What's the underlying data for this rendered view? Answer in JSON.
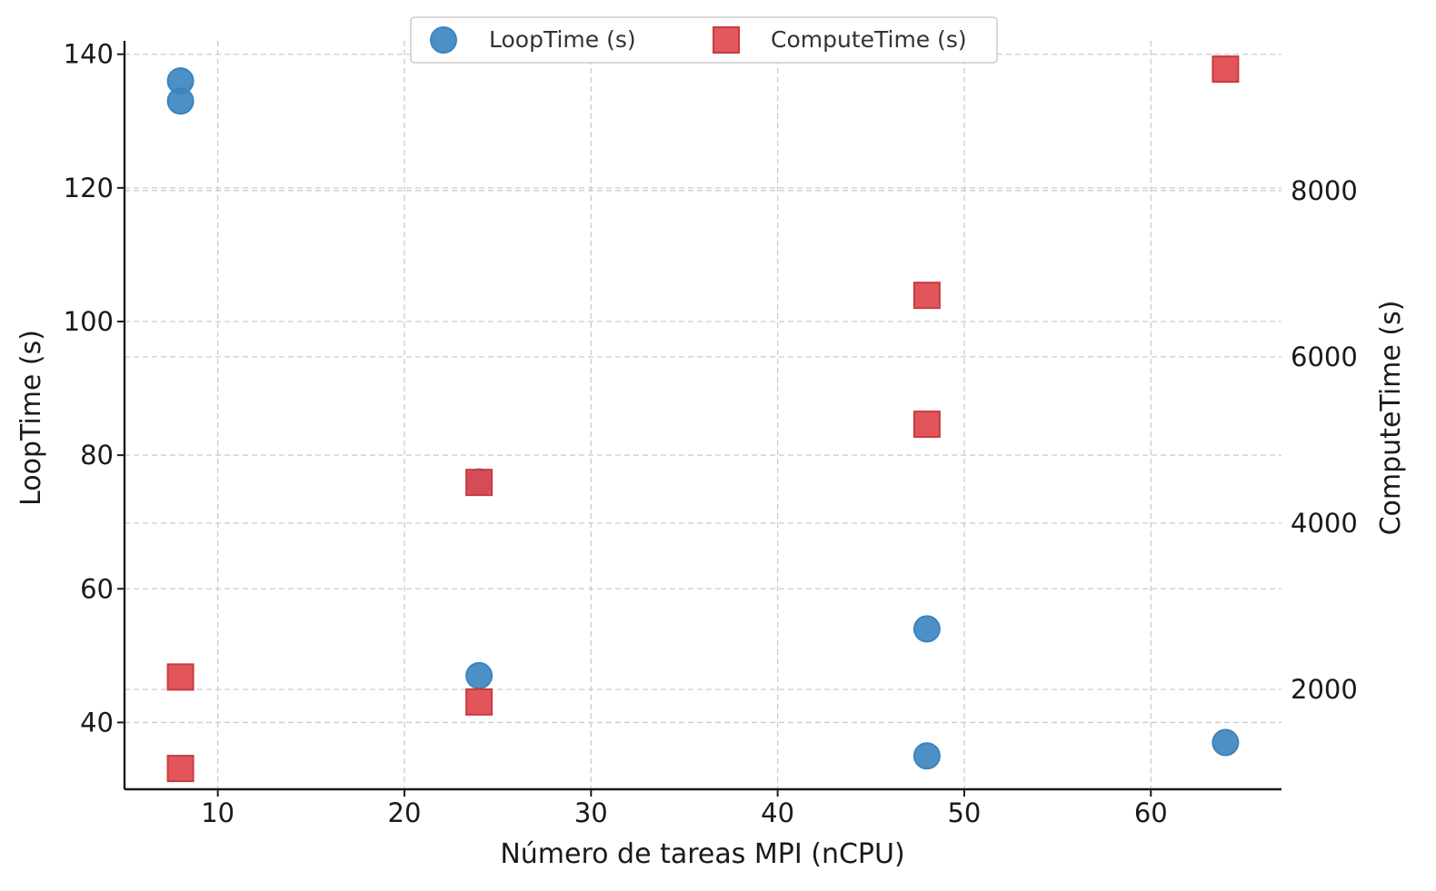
{
  "chart_data": {
    "type": "scatter",
    "xlabel": "Número de tareas MPI (nCPU)",
    "ylabel": "LoopTime (s)",
    "y2label": "ComputeTime (s)",
    "xlim": [
      5,
      67
    ],
    "ylim": [
      30,
      142
    ],
    "y2lim": [
      800,
      9800
    ],
    "x_ticks": [
      10,
      20,
      30,
      40,
      50,
      60
    ],
    "y_ticks": [
      40,
      60,
      80,
      100,
      120,
      140
    ],
    "y2_ticks": [
      2000,
      4000,
      6000,
      8000
    ],
    "grid": true,
    "legend_position": "top-center",
    "series": [
      {
        "name": "LoopTime (s)",
        "axis": "left",
        "marker": "circle",
        "color": "#3a84c0",
        "points": [
          {
            "x": 8,
            "y": 136
          },
          {
            "x": 8,
            "y": 133
          },
          {
            "x": 24,
            "y": 76
          },
          {
            "x": 24,
            "y": 47
          },
          {
            "x": 48,
            "y": 54
          },
          {
            "x": 48,
            "y": 35
          },
          {
            "x": 64,
            "y": 37
          }
        ]
      },
      {
        "name": "ComputeTime (s)",
        "axis": "right",
        "marker": "square",
        "color": "#e0474c",
        "points": [
          {
            "x": 8,
            "y": 2150
          },
          {
            "x": 8,
            "y": 1050
          },
          {
            "x": 24,
            "y": 4490
          },
          {
            "x": 24,
            "y": 1850
          },
          {
            "x": 48,
            "y": 6740
          },
          {
            "x": 48,
            "y": 5190
          },
          {
            "x": 64,
            "y": 9460
          }
        ]
      }
    ]
  }
}
